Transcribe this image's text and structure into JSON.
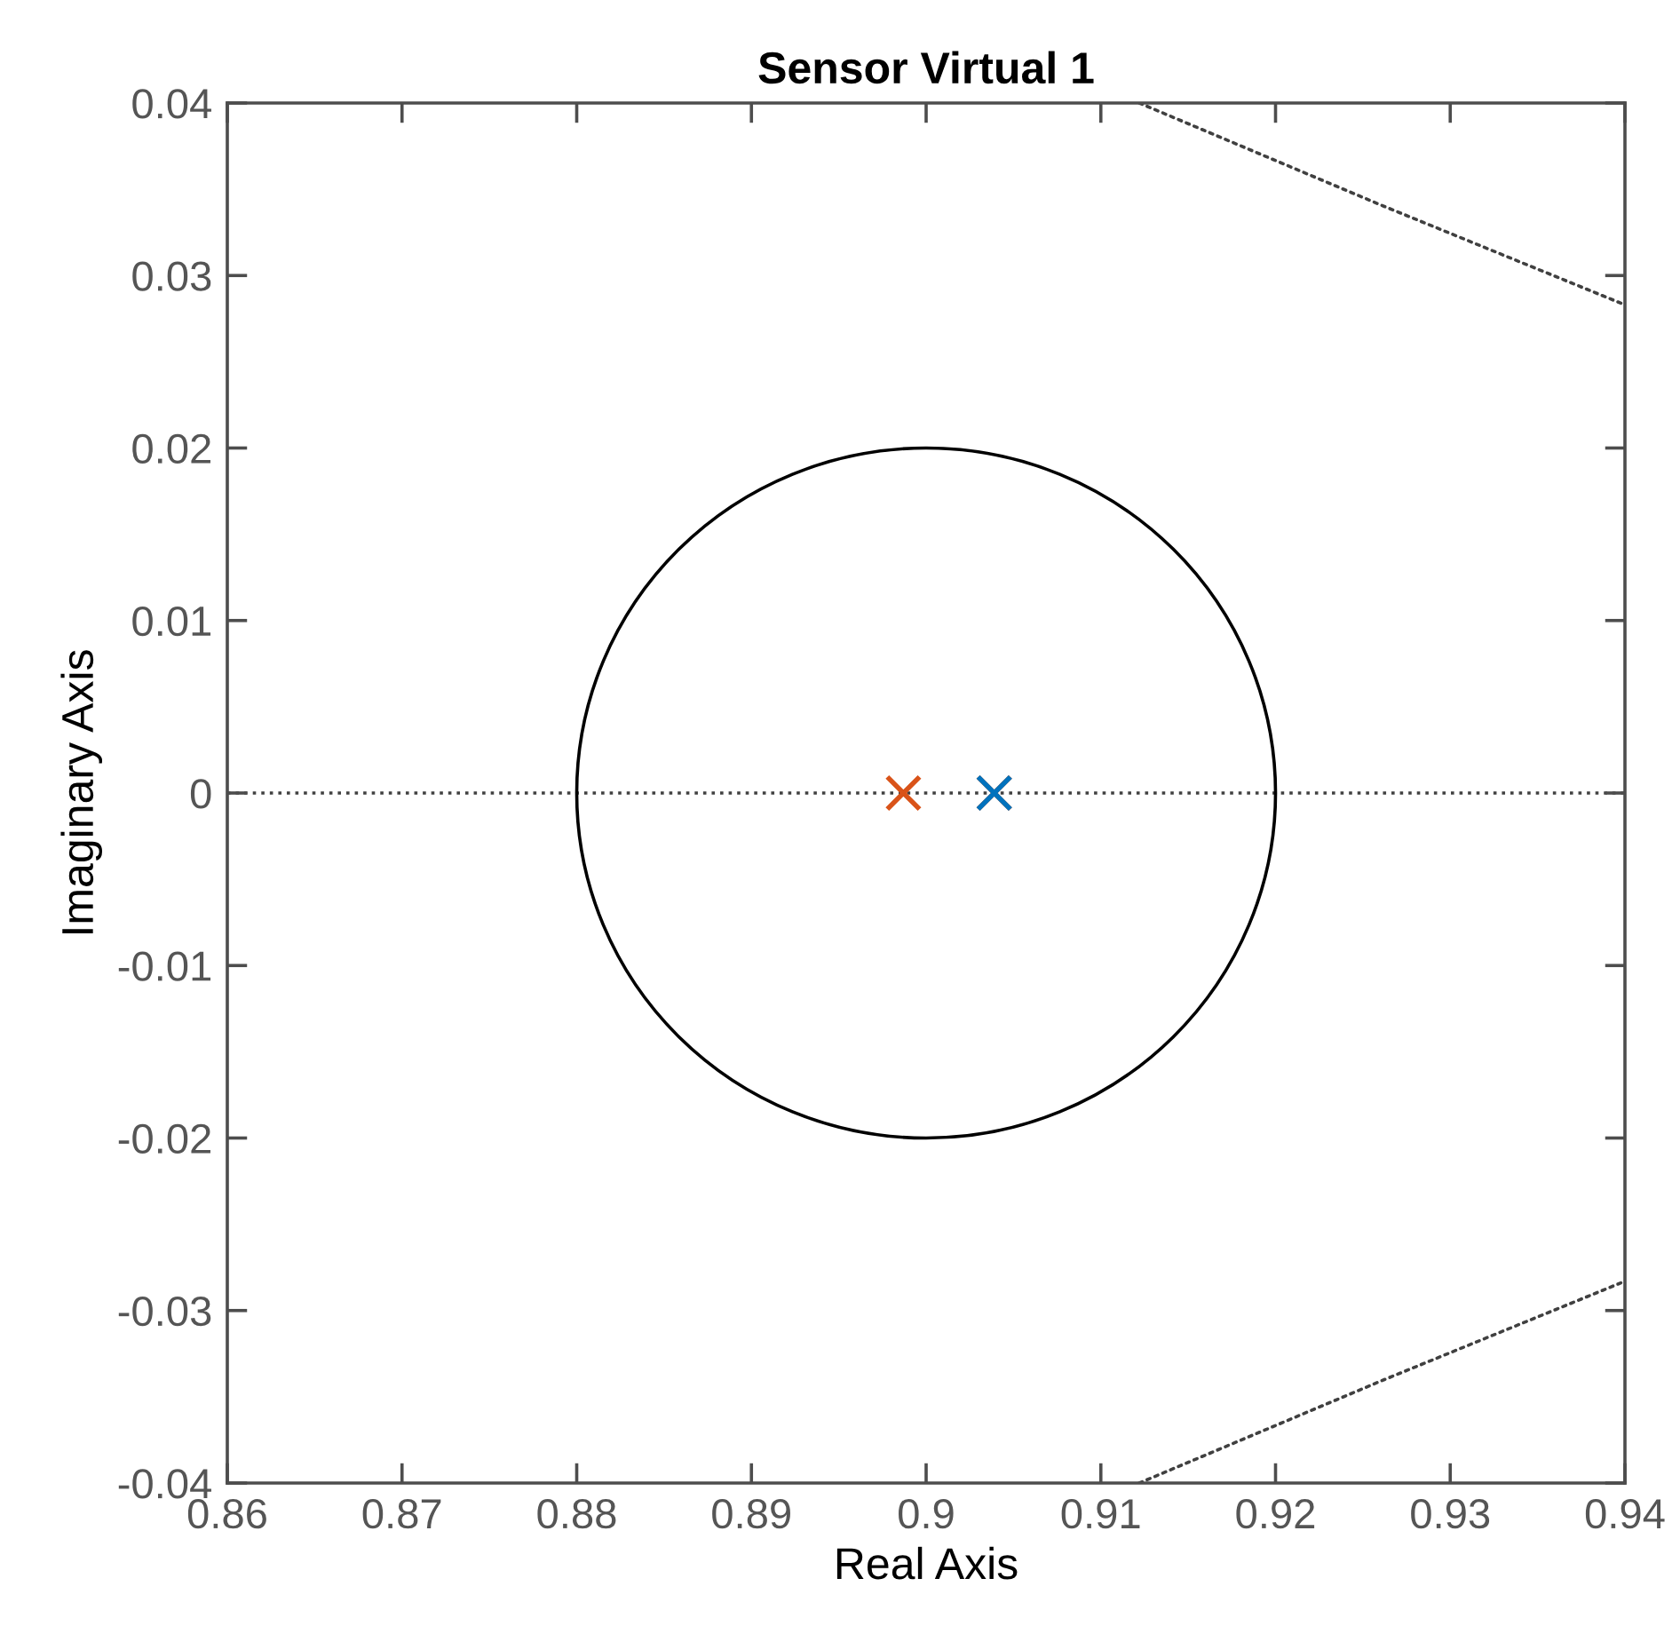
{
  "chart_data": {
    "type": "scatter",
    "title": "Sensor Virtual 1",
    "xlabel": "Real Axis",
    "ylabel": "Imaginary Axis",
    "xlim": [
      0.86,
      0.94
    ],
    "ylim": [
      -0.04,
      0.04
    ],
    "xticks": [
      0.86,
      0.87,
      0.88,
      0.89,
      0.9,
      0.91,
      0.92,
      0.93,
      0.94
    ],
    "yticks": [
      -0.04,
      -0.03,
      -0.02,
      -0.01,
      0,
      0.01,
      0.02,
      0.03,
      0.04
    ],
    "grid": false,
    "legend": false,
    "marker": "cross",
    "ref_lines": [
      {
        "axis": "y",
        "value": 0,
        "color": "#404040",
        "line_style": "dotted"
      }
    ],
    "series": [
      {
        "type": "line",
        "color": "#404040",
        "line_style": "dotted",
        "marker": "none",
        "x": [
          0.9122,
          0.926,
          0.94
        ],
        "values": [
          0.04,
          0.0341,
          0.0283
        ]
      },
      {
        "type": "line",
        "color": "#404040",
        "line_style": "dotted",
        "marker": "none",
        "x": [
          0.9122,
          0.926,
          0.94
        ],
        "values": [
          -0.04,
          -0.0341,
          -0.0283
        ]
      },
      {
        "type": "scatter",
        "color": "#d95319",
        "x": [
          0.8987,
          0.9039
        ],
        "values": [
          0,
          0
        ]
      },
      {
        "type": "scatter",
        "color": "#0072bd",
        "x": [
          0.9039
        ],
        "values": [
          0
        ]
      }
    ]
  }
}
